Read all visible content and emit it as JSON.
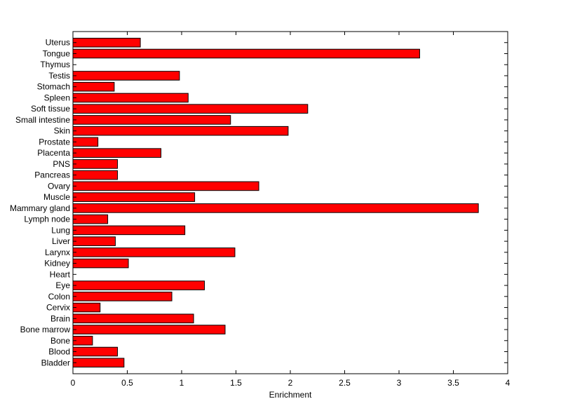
{
  "chart_data": {
    "type": "bar",
    "orientation": "horizontal",
    "categories": [
      "Bladder",
      "Blood",
      "Bone",
      "Bone marrow",
      "Brain",
      "Cervix",
      "Colon",
      "Eye",
      "Heart",
      "Kidney",
      "Larynx",
      "Liver",
      "Lung",
      "Lymph node",
      "Mammary gland",
      "Muscle",
      "Ovary",
      "Pancreas",
      "PNS",
      "Placenta",
      "Prostate",
      "Skin",
      "Small intestine",
      "Soft tissue",
      "Spleen",
      "Stomach",
      "Testis",
      "Thymus",
      "Tongue",
      "Uterus"
    ],
    "values": [
      0.47,
      0.41,
      0.18,
      1.4,
      1.11,
      0.25,
      0.91,
      1.21,
      0,
      0.51,
      1.49,
      0.39,
      1.03,
      0.32,
      3.73,
      1.12,
      1.71,
      0.41,
      0.41,
      0.81,
      0.23,
      1.98,
      1.45,
      2.16,
      1.06,
      0.38,
      0.98,
      0,
      3.19,
      0.62
    ],
    "xlabel": "Enrichment",
    "xlim": [
      0,
      4
    ],
    "xticks": [
      0,
      0.5,
      1,
      1.5,
      2,
      2.5,
      3,
      3.5,
      4
    ],
    "xtick_labels": [
      "0",
      "0.5",
      "1",
      "1.5",
      "2",
      "2.5",
      "3",
      "3.5",
      "4"
    ],
    "bar_color": "#ff0000",
    "bar_edge_color": "#000000",
    "grid": false,
    "legend": "none"
  }
}
